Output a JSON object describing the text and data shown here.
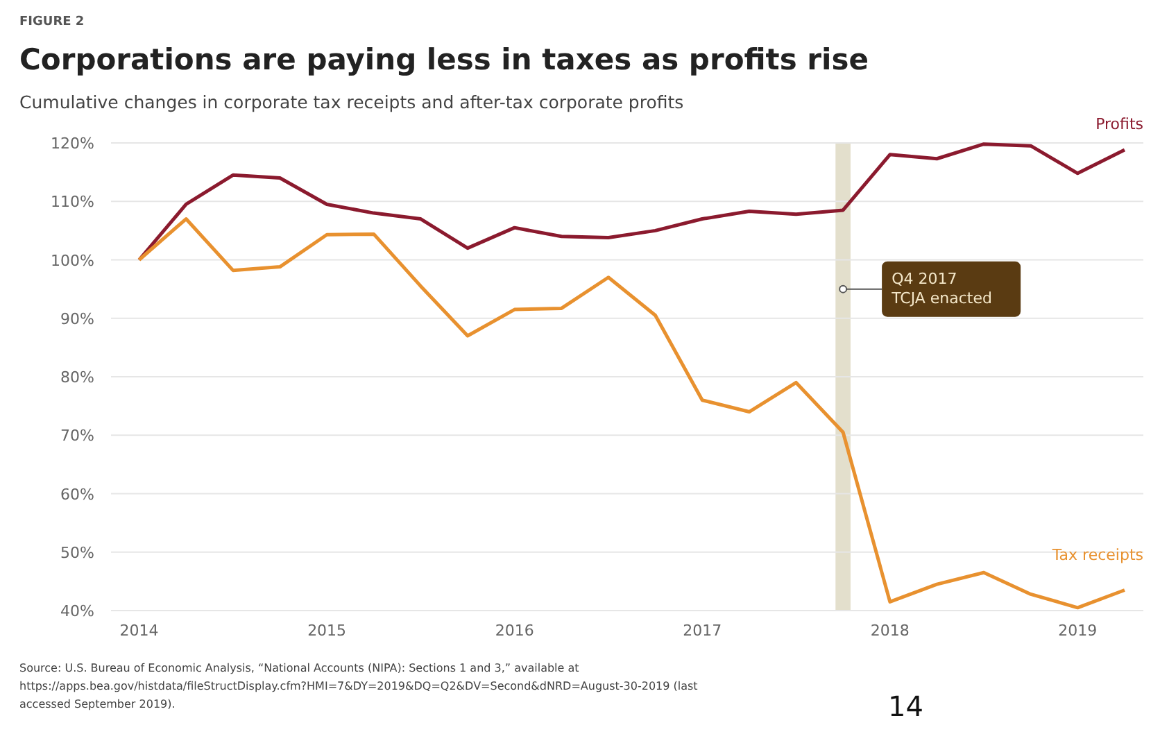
{
  "chart_data": {
    "type": "line",
    "title": "Corporations are paying less in taxes as profits rise",
    "subtitle": "Cumulative changes in corporate tax receipts and after-tax corporate profits",
    "x": [
      2014,
      2014.25,
      2014.5,
      2014.75,
      2015,
      2015.25,
      2015.5,
      2015.75,
      2016,
      2016.25,
      2016.5,
      2016.75,
      2017,
      2017.25,
      2017.5,
      2017.75,
      2018,
      2018.25,
      2018.5,
      2018.75,
      2019,
      2019.25
    ],
    "series": [
      {
        "name": "Profits",
        "color": "#8b1a2e",
        "values": [
          100,
          109.5,
          114.5,
          114,
          109.5,
          108,
          107,
          102,
          105.5,
          104,
          103.8,
          105,
          107,
          108.3,
          107.8,
          108.5,
          118,
          117.3,
          119.8,
          119.5,
          114.8,
          118.8
        ]
      },
      {
        "name": "Tax receipts",
        "color": "#e8912f",
        "values": [
          100,
          107,
          98.2,
          98.8,
          104.3,
          104.4,
          95.5,
          87,
          91.5,
          91.7,
          97,
          90.5,
          76,
          74,
          79,
          70.5,
          41.5,
          44.5,
          46.5,
          42.8,
          40.5,
          43.5
        ]
      }
    ],
    "xlim": [
      2013.85,
      2019.35
    ],
    "xticks": [
      2014,
      2015,
      2016,
      2017,
      2018,
      2019
    ],
    "ylim": [
      40,
      120
    ],
    "yticks": [
      {
        "value": 40,
        "label": "40%"
      },
      {
        "value": 50,
        "label": "50%"
      },
      {
        "value": 60,
        "label": "60%"
      },
      {
        "value": 70,
        "label": "70%"
      },
      {
        "value": 80,
        "label": "80%"
      },
      {
        "value": 90,
        "label": "90%"
      },
      {
        "value": 100,
        "label": "100%"
      },
      {
        "value": 110,
        "label": "110%"
      },
      {
        "value": 120,
        "label": "120%"
      }
    ],
    "grid": "y",
    "legend": false,
    "marker": "none",
    "line_style": "solid",
    "bands": [
      {
        "axis": "x",
        "from": 2017.71,
        "to": 2017.79,
        "color": "#e3dfcc"
      }
    ],
    "annotations": [
      {
        "text": "Q4 2017\nTCJA enacted",
        "x": 2017.75,
        "y": 95
      },
      "FIGURE 2",
      "Source: U.S. Bureau of Economic Analysis, “National Accounts (NIPA): Sections 1 and 3,” available at https://apps.bea.gov/histdata/fileStructDisplay.cfm?HMI=7&DY=2019&DQ=Q2&DV=Second&dNRD=August-30-2019 (last accessed September 2019).",
      "14"
    ]
  }
}
